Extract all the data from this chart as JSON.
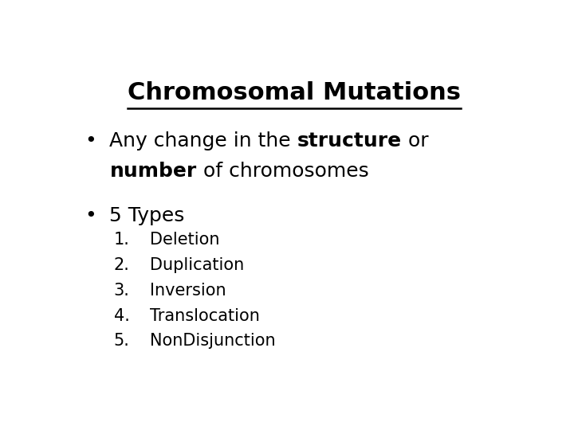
{
  "title": "Chromosomal Mutations",
  "title_fontsize": 22,
  "background_color": "#ffffff",
  "text_color": "#000000",
  "bullet_fontsize": 18,
  "numbered_fontsize": 15,
  "numbered_items": [
    "Deletion",
    "Duplication",
    "Inversion",
    "Translocation",
    "NonDisjunction"
  ],
  "bullet_symbol": "•"
}
